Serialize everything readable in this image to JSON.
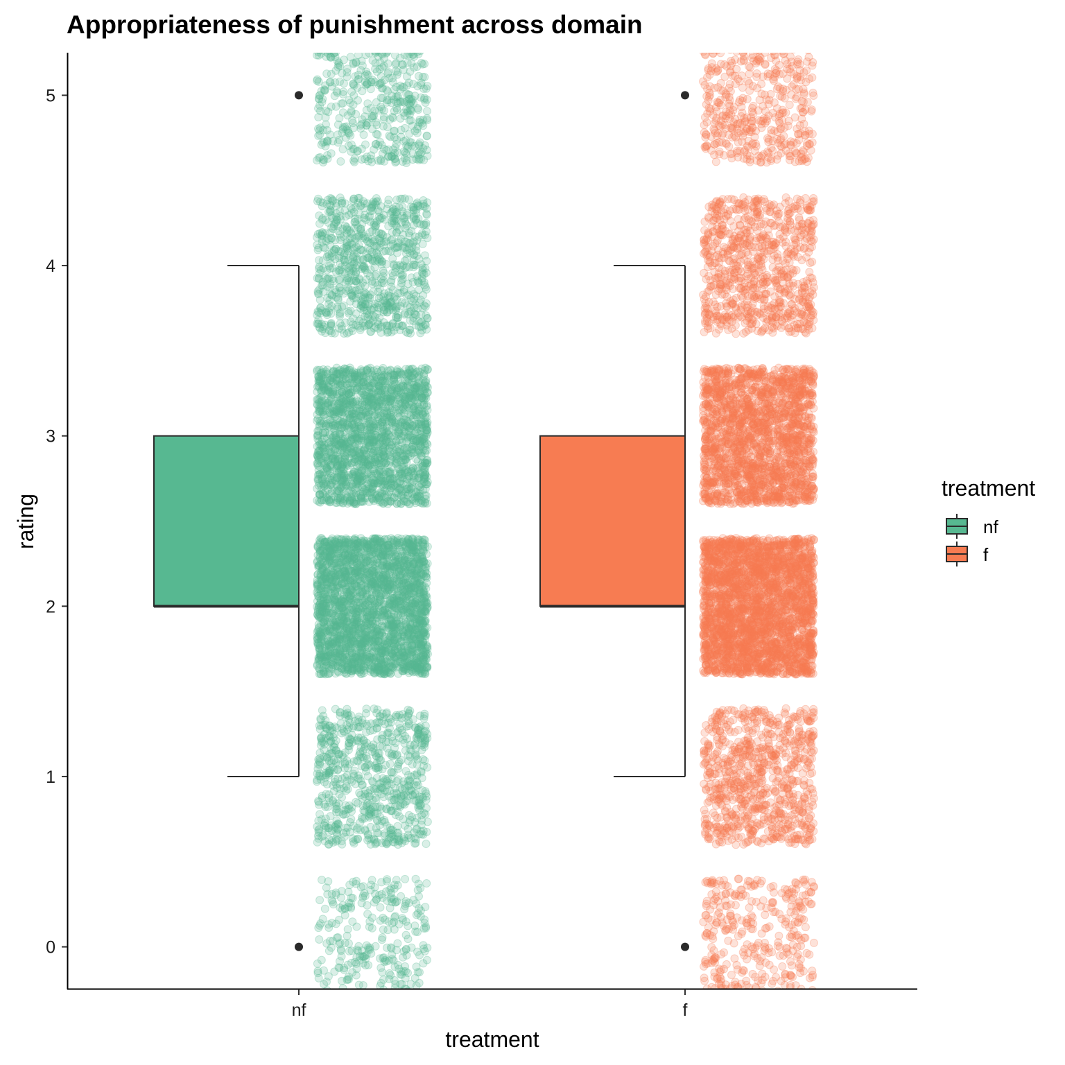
{
  "chart_data": {
    "type": "boxplot",
    "title": "Appropriateness of punishment across domain",
    "xlabel": "treatment",
    "ylabel": "rating",
    "ylim": [
      -0.25,
      5.25
    ],
    "yticks": [
      0,
      1,
      2,
      3,
      4,
      5
    ],
    "grid": false,
    "categories": [
      "nf",
      "f"
    ],
    "jitter_points": true,
    "series": [
      {
        "name": "nf",
        "color": "#57b891",
        "whisker_low": 1,
        "q1": 2,
        "median": 2,
        "q3": 3,
        "whisker_high": 4,
        "outliers": [
          0,
          5
        ],
        "jitter_density": {
          "0": 330,
          "1": 720,
          "2": 2500,
          "3": 1900,
          "4": 820,
          "5": 520
        }
      },
      {
        "name": "f",
        "color": "#f77c52",
        "whisker_low": 1,
        "q1": 2,
        "median": 2,
        "q3": 3,
        "whisker_high": 4,
        "outliers": [
          0,
          5
        ],
        "jitter_density": {
          "0": 420,
          "1": 820,
          "2": 2700,
          "3": 1900,
          "4": 820,
          "5": 520
        }
      }
    ],
    "legend": {
      "title": "treatment",
      "position": "right",
      "entries": [
        "nf",
        "f"
      ]
    }
  }
}
